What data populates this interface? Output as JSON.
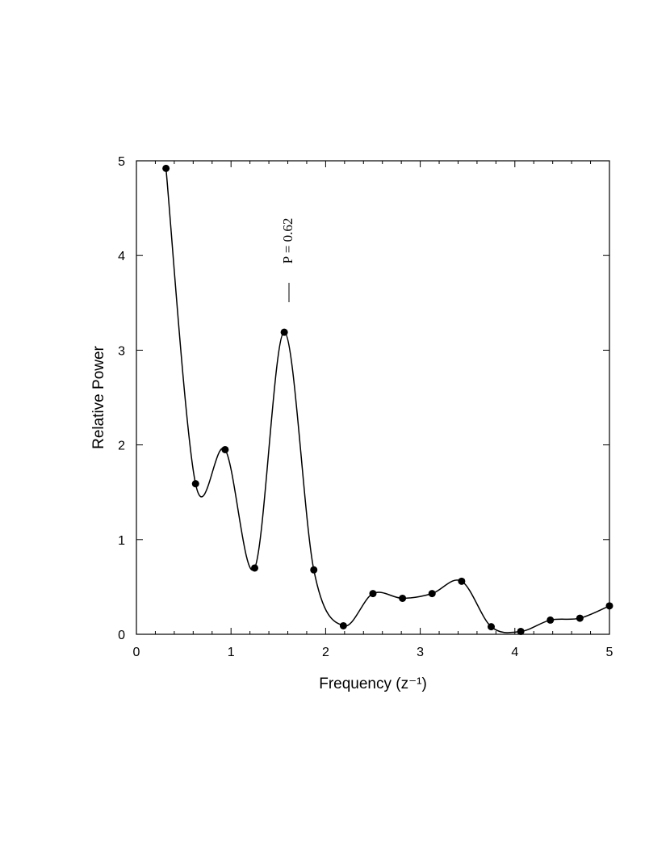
{
  "chart_data": {
    "type": "scatter-line",
    "x_label": "Frequency (z⁻¹)",
    "y_label": "Relative Power",
    "annotation": "P = 0.62",
    "x": [
      0.3125,
      0.625,
      0.9375,
      1.25,
      1.5625,
      1.875,
      2.1875,
      2.5,
      2.8125,
      3.125,
      3.4375,
      3.75,
      4.0625,
      4.375,
      4.6875,
      5.0
    ],
    "series": [
      {
        "color": "#000000",
        "values": [
          4.92,
          1.59,
          1.95,
          0.7,
          3.19,
          0.68,
          0.09,
          0.43,
          0.38,
          0.43,
          0.56,
          0.08,
          0.03,
          0.15,
          0.17,
          0.3
        ]
      }
    ],
    "xlim": [
      0,
      5
    ],
    "ylim": [
      0,
      5
    ],
    "xticks": [
      0,
      1,
      2,
      3,
      4,
      5
    ],
    "xminorticks": [
      0.2,
      0.4,
      0.6,
      0.8,
      1.2,
      1.4,
      1.6,
      1.8,
      2.2,
      2.4,
      2.6,
      2.8,
      3.2,
      3.4,
      3.6,
      3.8,
      4.2,
      4.4,
      4.6,
      4.8
    ],
    "yticks": [
      0,
      1,
      2,
      3,
      4,
      5
    ],
    "smooth": true
  }
}
